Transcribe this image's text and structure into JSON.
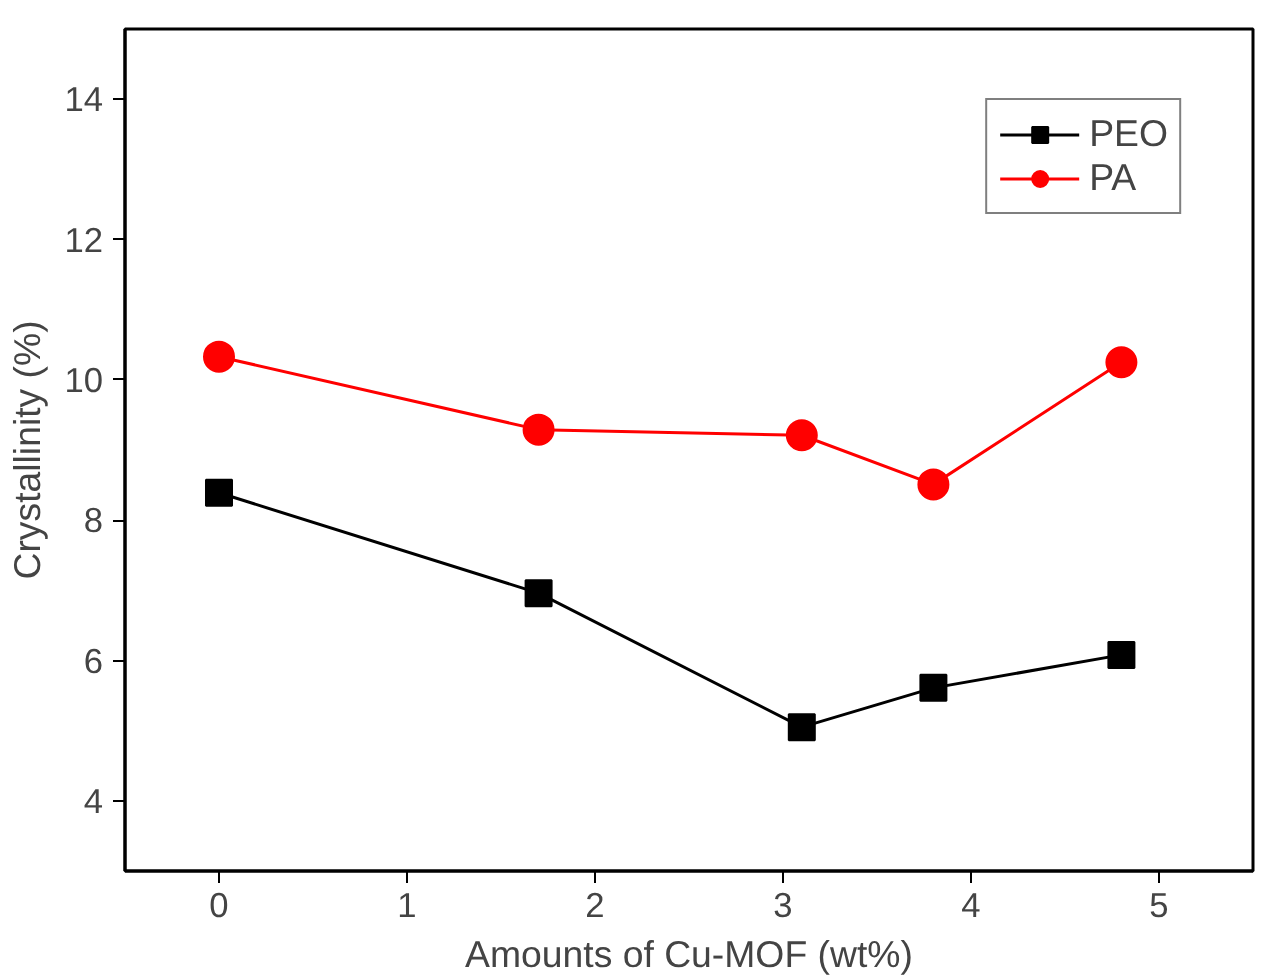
{
  "chart_data": {
    "type": "line",
    "xlabel": "Amounts of Cu-MOF (wt%)",
    "ylabel": "Crystallinity (%)",
    "x": [
      0,
      1.7,
      3.1,
      3.8,
      4.8
    ],
    "series": [
      {
        "name": "PEO",
        "color": "#000000",
        "marker": "square",
        "values": [
          8.39,
          6.96,
          5.05,
          5.61,
          6.08
        ]
      },
      {
        "name": "PA",
        "color": "#ff0000",
        "marker": "circle",
        "values": [
          10.33,
          9.29,
          9.21,
          8.51,
          10.25
        ]
      }
    ],
    "xlim": [
      -0.5,
      5.5
    ],
    "ylim": [
      3,
      15
    ],
    "xticks": [
      0,
      1,
      2,
      3,
      4,
      5
    ],
    "yticks": [
      4,
      6,
      8,
      10,
      12,
      14
    ],
    "grid": false,
    "legend": "top right"
  }
}
